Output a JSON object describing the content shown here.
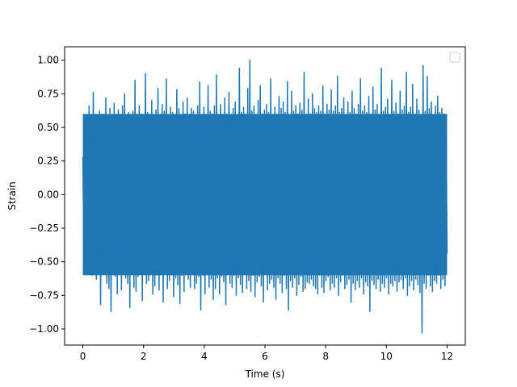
{
  "chart_data": {
    "type": "line",
    "title": "",
    "xlabel": "Time (s)",
    "ylabel": "Strain",
    "xlim": [
      -0.6,
      12.6
    ],
    "ylim": [
      -1.12,
      1.1
    ],
    "xticks": [
      0,
      2,
      4,
      6,
      8,
      10,
      12
    ],
    "xtick_labels": [
      "0",
      "2",
      "4",
      "6",
      "8",
      "10",
      "12"
    ],
    "yticks": [
      -1.0,
      -0.75,
      -0.5,
      -0.25,
      0.0,
      0.25,
      0.5,
      0.75,
      1.0
    ],
    "ytick_labels": [
      "−1.00",
      "−0.75",
      "−0.50",
      "−0.25",
      "0.00",
      "0.25",
      "0.50",
      "0.75",
      "1.00"
    ],
    "grid": false,
    "legend": {
      "placement": "upper-right",
      "entries": []
    },
    "series": [
      {
        "color": "#1f77b4",
        "x_start": 0.0,
        "x_end": 12.0,
        "amplitude_envelope": [
          -0.6,
          0.6
        ],
        "values": [
          0.28,
          -0.41,
          0.35,
          -0.44,
          0.52,
          -0.38,
          0.66,
          -0.55,
          0.44,
          -0.6,
          0.76,
          -0.48,
          0.58,
          -0.63,
          0.46,
          -0.52,
          0.62,
          -0.82,
          0.55,
          -0.47,
          0.6,
          -0.58,
          0.72,
          -0.66,
          0.49,
          -0.7,
          0.64,
          -0.87,
          0.57,
          -0.52,
          0.68,
          -0.61,
          0.53,
          -0.74,
          0.63,
          -0.5,
          0.59,
          -0.71,
          0.66,
          -0.57,
          0.75,
          -0.62,
          0.51,
          -0.66,
          0.61,
          -0.84,
          0.56,
          -0.55,
          0.62,
          -0.69,
          0.85,
          -0.72,
          0.54,
          -0.61,
          0.66,
          -0.58,
          0.6,
          -0.79,
          0.57,
          -0.53,
          0.9,
          -0.66,
          0.61,
          -0.64,
          0.58,
          -0.57,
          0.7,
          -0.74,
          0.55,
          -0.68,
          0.63,
          -0.6,
          0.79,
          -0.71,
          0.57,
          -0.58,
          0.67,
          -0.8,
          0.62,
          -0.55,
          0.86,
          -0.7,
          0.59,
          -0.64,
          0.65,
          -0.59,
          0.61,
          -0.76,
          0.58,
          -0.62,
          0.78,
          -0.67,
          0.64,
          -0.81,
          0.55,
          -0.6,
          0.69,
          -0.72,
          0.6,
          -0.57,
          0.72,
          -0.63,
          0.56,
          -0.69,
          0.64,
          -0.58,
          0.62,
          -0.7,
          0.59,
          -0.66,
          0.66,
          -0.61,
          0.84,
          -0.86,
          0.58,
          -0.6,
          0.65,
          -0.74,
          0.57,
          -0.56,
          0.81,
          -0.69,
          0.62,
          -0.63,
          0.6,
          -0.78,
          0.66,
          -0.7,
          0.89,
          -0.62,
          0.58,
          -0.74,
          0.67,
          -0.61,
          0.56,
          -0.65,
          0.72,
          -0.82,
          0.6,
          -0.58,
          0.76,
          -0.66,
          0.59,
          -0.69,
          0.64,
          -0.6,
          0.69,
          -0.75,
          0.58,
          -0.62,
          0.94,
          -0.67,
          0.61,
          -0.73,
          0.65,
          -0.57,
          0.6,
          -0.7,
          0.79,
          -0.64,
          1.0,
          -0.72,
          0.62,
          -0.6,
          0.66,
          -0.76,
          0.57,
          -0.65,
          0.7,
          -0.61,
          0.81,
          -0.68,
          0.6,
          -0.8,
          0.63,
          -0.58,
          0.67,
          -0.71,
          0.61,
          -0.66,
          0.86,
          -0.63,
          0.58,
          -0.69,
          0.65,
          -0.78,
          0.6,
          -0.62,
          0.73,
          -0.66,
          0.64,
          -0.73,
          0.69,
          -0.6,
          0.61,
          -0.7,
          0.84,
          -0.86,
          0.59,
          -0.64,
          0.77,
          -0.69,
          0.62,
          -0.62,
          0.66,
          -0.75,
          0.6,
          -0.67,
          0.68,
          -0.61,
          0.63,
          -0.72,
          0.91,
          -0.7,
          0.58,
          -0.65,
          0.71,
          -0.66,
          0.6,
          -0.63,
          0.75,
          -0.68,
          0.64,
          -0.7,
          0.61,
          -0.74,
          0.66,
          -0.6,
          0.62,
          -0.69,
          0.81,
          -0.73,
          0.6,
          -0.64,
          0.67,
          -0.61,
          0.63,
          -0.71,
          0.78,
          -0.66,
          0.62,
          -0.69,
          0.66,
          -0.62,
          0.88,
          -0.75,
          0.61,
          -0.65,
          0.64,
          -0.6,
          0.72,
          -0.7,
          0.59,
          -0.67,
          0.69,
          -0.63,
          0.61,
          -0.8,
          0.77,
          -0.66,
          0.64,
          -0.71,
          0.6,
          -0.64,
          0.67,
          -0.69,
          0.86,
          -0.62,
          0.62,
          -0.74,
          0.66,
          -0.65,
          0.61,
          -0.68,
          0.73,
          -0.87,
          0.6,
          -0.64,
          0.8,
          -0.67,
          0.63,
          -0.7,
          0.67,
          -0.63,
          0.6,
          -0.72,
          0.94,
          -0.66,
          0.62,
          -0.69,
          0.65,
          -0.62,
          0.71,
          -0.74,
          0.59,
          -0.66,
          0.85,
          -0.68,
          0.62,
          -0.64,
          0.68,
          -0.72,
          0.6,
          -0.65,
          0.77,
          -0.63,
          0.63,
          -0.7,
          0.66,
          -0.62,
          0.91,
          -0.75,
          0.61,
          -0.68,
          0.65,
          -0.64,
          0.82,
          -0.71,
          0.6,
          -0.63,
          0.71,
          -0.67,
          0.63,
          -0.73,
          0.58,
          -1.03,
          0.96,
          -0.66,
          0.62,
          -0.7,
          0.88,
          -0.6,
          0.64,
          -0.68,
          0.69,
          -0.72,
          0.59,
          -0.64,
          0.66,
          -0.66,
          0.73,
          -0.6,
          0.61,
          -0.7,
          0.64,
          -0.63,
          0.6,
          -0.68,
          0.55,
          -0.44
        ]
      }
    ]
  }
}
